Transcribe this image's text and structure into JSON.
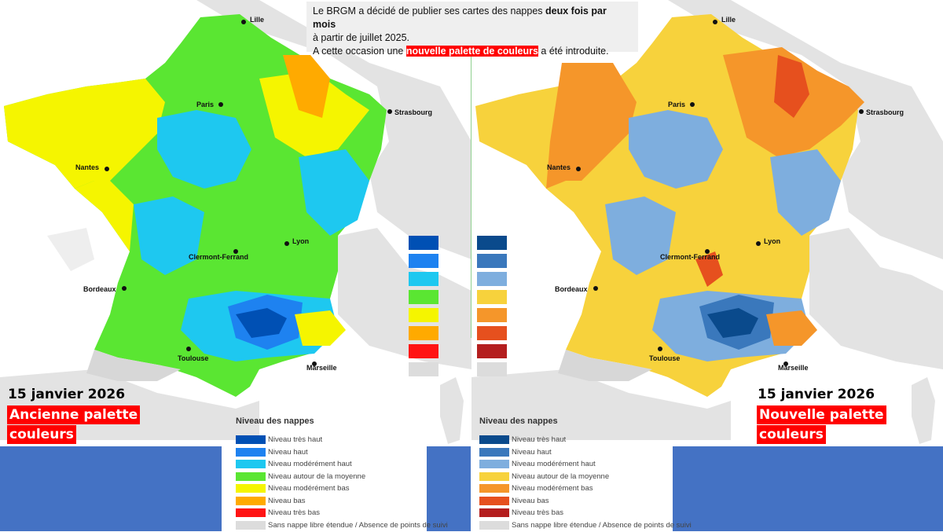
{
  "notice": {
    "line1_a": "Le BRGM a décidé de publier ses cartes des nappes ",
    "line1_b": "deux fois par mois",
    "line2": "à partir de juillet 2025.",
    "line3_a": "A cette occasion une ",
    "line3_b": "nouvelle palette de couleurs",
    "line3_c": " a été introduite."
  },
  "left_panel": {
    "date": "15 janvier 2026",
    "label_line1": "Ancienne palette",
    "label_line2": "couleurs"
  },
  "right_panel": {
    "date": "15 janvier 2026",
    "label_line1": "Nouvelle palette",
    "label_line2": "couleurs"
  },
  "cities": [
    "Lille",
    "Paris",
    "Strasbourg",
    "Nantes",
    "Lyon",
    "Clermont-Ferrand",
    "Bordeaux",
    "Toulouse",
    "Marseille"
  ],
  "legend_title": "Niveau des nappes",
  "legend_levels": [
    "Niveau très haut",
    "Niveau haut",
    "Niveau modérément haut",
    "Niveau autour de la moyenne",
    "Niveau modérément bas",
    "Niveau bas",
    "Niveau très bas",
    "Sans nappe libre étendue / Absence de points de suivi"
  ],
  "old_palette_colors": [
    "#0050b4",
    "#1e82f0",
    "#1ec8f0",
    "#5ae632",
    "#f5f500",
    "#ffaa00",
    "#ff1414",
    "#dcdcdc"
  ],
  "new_palette_colors": [
    "#0a4a8c",
    "#3a78bc",
    "#7eaede",
    "#f7d23c",
    "#f5962a",
    "#e6501e",
    "#b41e1e",
    "#dcdcdc"
  ]
}
